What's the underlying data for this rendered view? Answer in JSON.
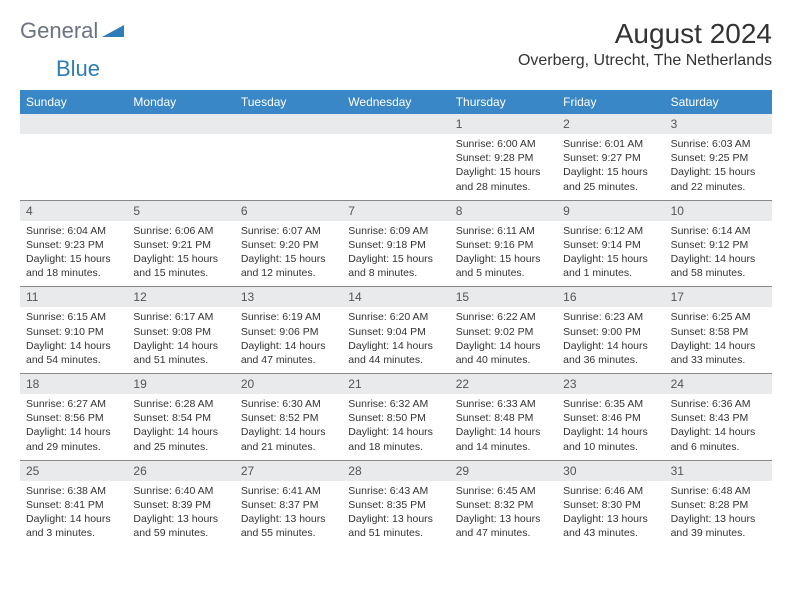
{
  "logo": {
    "text1": "General",
    "text2": "Blue"
  },
  "title": "August 2024",
  "location": "Overberg, Utrecht, The Netherlands",
  "colors": {
    "header_bg": "#3a87c7",
    "header_text": "#ffffff",
    "daynum_bg": "#e9eaeb",
    "divider": "#888888",
    "logo_gray": "#6b7280",
    "logo_blue": "#2f7db8"
  },
  "dayNames": [
    "Sunday",
    "Monday",
    "Tuesday",
    "Wednesday",
    "Thursday",
    "Friday",
    "Saturday"
  ],
  "weeks": [
    [
      {
        "n": "",
        "sr": "",
        "ss": "",
        "dl": ""
      },
      {
        "n": "",
        "sr": "",
        "ss": "",
        "dl": ""
      },
      {
        "n": "",
        "sr": "",
        "ss": "",
        "dl": ""
      },
      {
        "n": "",
        "sr": "",
        "ss": "",
        "dl": ""
      },
      {
        "n": "1",
        "sr": "Sunrise: 6:00 AM",
        "ss": "Sunset: 9:28 PM",
        "dl": "Daylight: 15 hours and 28 minutes."
      },
      {
        "n": "2",
        "sr": "Sunrise: 6:01 AM",
        "ss": "Sunset: 9:27 PM",
        "dl": "Daylight: 15 hours and 25 minutes."
      },
      {
        "n": "3",
        "sr": "Sunrise: 6:03 AM",
        "ss": "Sunset: 9:25 PM",
        "dl": "Daylight: 15 hours and 22 minutes."
      }
    ],
    [
      {
        "n": "4",
        "sr": "Sunrise: 6:04 AM",
        "ss": "Sunset: 9:23 PM",
        "dl": "Daylight: 15 hours and 18 minutes."
      },
      {
        "n": "5",
        "sr": "Sunrise: 6:06 AM",
        "ss": "Sunset: 9:21 PM",
        "dl": "Daylight: 15 hours and 15 minutes."
      },
      {
        "n": "6",
        "sr": "Sunrise: 6:07 AM",
        "ss": "Sunset: 9:20 PM",
        "dl": "Daylight: 15 hours and 12 minutes."
      },
      {
        "n": "7",
        "sr": "Sunrise: 6:09 AM",
        "ss": "Sunset: 9:18 PM",
        "dl": "Daylight: 15 hours and 8 minutes."
      },
      {
        "n": "8",
        "sr": "Sunrise: 6:11 AM",
        "ss": "Sunset: 9:16 PM",
        "dl": "Daylight: 15 hours and 5 minutes."
      },
      {
        "n": "9",
        "sr": "Sunrise: 6:12 AM",
        "ss": "Sunset: 9:14 PM",
        "dl": "Daylight: 15 hours and 1 minutes."
      },
      {
        "n": "10",
        "sr": "Sunrise: 6:14 AM",
        "ss": "Sunset: 9:12 PM",
        "dl": "Daylight: 14 hours and 58 minutes."
      }
    ],
    [
      {
        "n": "11",
        "sr": "Sunrise: 6:15 AM",
        "ss": "Sunset: 9:10 PM",
        "dl": "Daylight: 14 hours and 54 minutes."
      },
      {
        "n": "12",
        "sr": "Sunrise: 6:17 AM",
        "ss": "Sunset: 9:08 PM",
        "dl": "Daylight: 14 hours and 51 minutes."
      },
      {
        "n": "13",
        "sr": "Sunrise: 6:19 AM",
        "ss": "Sunset: 9:06 PM",
        "dl": "Daylight: 14 hours and 47 minutes."
      },
      {
        "n": "14",
        "sr": "Sunrise: 6:20 AM",
        "ss": "Sunset: 9:04 PM",
        "dl": "Daylight: 14 hours and 44 minutes."
      },
      {
        "n": "15",
        "sr": "Sunrise: 6:22 AM",
        "ss": "Sunset: 9:02 PM",
        "dl": "Daylight: 14 hours and 40 minutes."
      },
      {
        "n": "16",
        "sr": "Sunrise: 6:23 AM",
        "ss": "Sunset: 9:00 PM",
        "dl": "Daylight: 14 hours and 36 minutes."
      },
      {
        "n": "17",
        "sr": "Sunrise: 6:25 AM",
        "ss": "Sunset: 8:58 PM",
        "dl": "Daylight: 14 hours and 33 minutes."
      }
    ],
    [
      {
        "n": "18",
        "sr": "Sunrise: 6:27 AM",
        "ss": "Sunset: 8:56 PM",
        "dl": "Daylight: 14 hours and 29 minutes."
      },
      {
        "n": "19",
        "sr": "Sunrise: 6:28 AM",
        "ss": "Sunset: 8:54 PM",
        "dl": "Daylight: 14 hours and 25 minutes."
      },
      {
        "n": "20",
        "sr": "Sunrise: 6:30 AM",
        "ss": "Sunset: 8:52 PM",
        "dl": "Daylight: 14 hours and 21 minutes."
      },
      {
        "n": "21",
        "sr": "Sunrise: 6:32 AM",
        "ss": "Sunset: 8:50 PM",
        "dl": "Daylight: 14 hours and 18 minutes."
      },
      {
        "n": "22",
        "sr": "Sunrise: 6:33 AM",
        "ss": "Sunset: 8:48 PM",
        "dl": "Daylight: 14 hours and 14 minutes."
      },
      {
        "n": "23",
        "sr": "Sunrise: 6:35 AM",
        "ss": "Sunset: 8:46 PM",
        "dl": "Daylight: 14 hours and 10 minutes."
      },
      {
        "n": "24",
        "sr": "Sunrise: 6:36 AM",
        "ss": "Sunset: 8:43 PM",
        "dl": "Daylight: 14 hours and 6 minutes."
      }
    ],
    [
      {
        "n": "25",
        "sr": "Sunrise: 6:38 AM",
        "ss": "Sunset: 8:41 PM",
        "dl": "Daylight: 14 hours and 3 minutes."
      },
      {
        "n": "26",
        "sr": "Sunrise: 6:40 AM",
        "ss": "Sunset: 8:39 PM",
        "dl": "Daylight: 13 hours and 59 minutes."
      },
      {
        "n": "27",
        "sr": "Sunrise: 6:41 AM",
        "ss": "Sunset: 8:37 PM",
        "dl": "Daylight: 13 hours and 55 minutes."
      },
      {
        "n": "28",
        "sr": "Sunrise: 6:43 AM",
        "ss": "Sunset: 8:35 PM",
        "dl": "Daylight: 13 hours and 51 minutes."
      },
      {
        "n": "29",
        "sr": "Sunrise: 6:45 AM",
        "ss": "Sunset: 8:32 PM",
        "dl": "Daylight: 13 hours and 47 minutes."
      },
      {
        "n": "30",
        "sr": "Sunrise: 6:46 AM",
        "ss": "Sunset: 8:30 PM",
        "dl": "Daylight: 13 hours and 43 minutes."
      },
      {
        "n": "31",
        "sr": "Sunrise: 6:48 AM",
        "ss": "Sunset: 8:28 PM",
        "dl": "Daylight: 13 hours and 39 minutes."
      }
    ]
  ]
}
